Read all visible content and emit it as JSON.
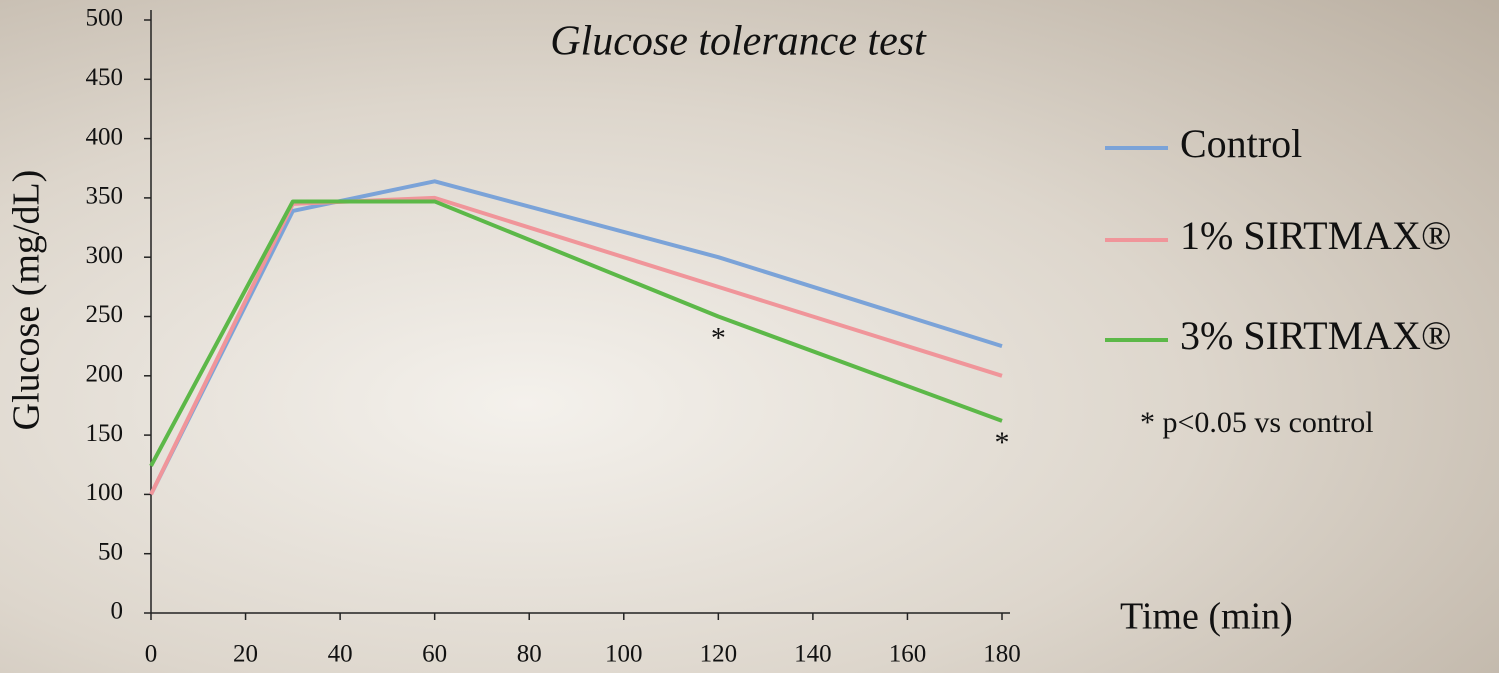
{
  "chart_data": {
    "type": "line",
    "title": "Glucose tolerance test",
    "x_label": "Time (min)",
    "y_label": "Glucose (mg/dL)",
    "x": [
      0,
      30,
      60,
      120,
      180
    ],
    "series": [
      {
        "name": "Control",
        "color": "#7ba3d8",
        "values": [
          100,
          339,
          364,
          300,
          225
        ]
      },
      {
        "name": "1% SIRTMAX®",
        "color": "#f0959a",
        "values": [
          100,
          345,
          350,
          275,
          200
        ]
      },
      {
        "name": "3% SIRTMAX®",
        "color": "#5cb848",
        "values": [
          124,
          347,
          347,
          250,
          162
        ]
      }
    ],
    "annotations": [
      {
        "text": "*",
        "x": 120
      },
      {
        "text": "*",
        "x": 180
      }
    ],
    "note": "* p<0.05 vs control",
    "xlim": [
      0,
      180
    ],
    "xticks": [
      0,
      20,
      40,
      60,
      80,
      100,
      120,
      140,
      160,
      180
    ],
    "ylim": [
      0,
      500
    ],
    "yticks": [
      0,
      50,
      100,
      150,
      200,
      250,
      300,
      350,
      400,
      450,
      500
    ],
    "grid": false,
    "legend": "right"
  }
}
